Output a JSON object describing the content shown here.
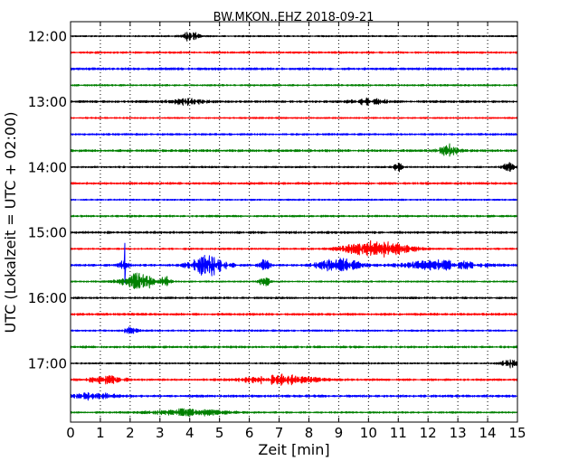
{
  "chart_data": {
    "type": "line",
    "title": "BW.MKON..EHZ 2018-09-21",
    "xlabel": "Zeit  [min]",
    "ylabel": "UTC (Lokalzeit = UTC + 02:00)",
    "xlim": [
      0,
      15
    ],
    "x_ticks": [
      "0",
      "1",
      "2",
      "3",
      "4",
      "5",
      "6",
      "7",
      "8",
      "9",
      "10",
      "11",
      "12",
      "13",
      "14",
      "15"
    ],
    "row_labels": [
      "12:00",
      "13:00",
      "14:00",
      "15:00",
      "16:00",
      "17:00"
    ],
    "trace_start": "12:00",
    "trace_interval_minutes": 15,
    "trace_count": 24,
    "grid": "vertical dotted at each minute",
    "colors": [
      "#000000",
      "#ff0000",
      "#0000ff",
      "#008000"
    ],
    "events": [
      {
        "trace": 0,
        "x": 4.0,
        "amp": 0.6,
        "dur": 0.5
      },
      {
        "trace": 4,
        "x": 3.9,
        "amp": 0.35,
        "dur": 1.0
      },
      {
        "trace": 4,
        "x": 10.0,
        "amp": 0.35,
        "dur": 1.0
      },
      {
        "trace": 7,
        "x": 12.7,
        "amp": 0.9,
        "dur": 0.5
      },
      {
        "trace": 8,
        "x": 11.0,
        "amp": 0.6,
        "dur": 0.2
      },
      {
        "trace": 8,
        "x": 14.7,
        "amp": 0.5,
        "dur": 0.3
      },
      {
        "trace": 13,
        "x": 10.3,
        "amp": 1.0,
        "dur": 1.8
      },
      {
        "trace": 14,
        "x": 1.8,
        "amp": 0.5,
        "dur": 0.3
      },
      {
        "trace": 14,
        "x": 4.6,
        "amp": 1.3,
        "dur": 1.0
      },
      {
        "trace": 14,
        "x": 6.5,
        "amp": 0.7,
        "dur": 0.3
      },
      {
        "trace": 14,
        "x": 9.0,
        "amp": 0.8,
        "dur": 1.2
      },
      {
        "trace": 14,
        "x": 12.5,
        "amp": 0.6,
        "dur": 2.0
      },
      {
        "trace": 15,
        "x": 2.2,
        "amp": 1.0,
        "dur": 0.9
      },
      {
        "trace": 15,
        "x": 3.2,
        "amp": 0.6,
        "dur": 0.3
      },
      {
        "trace": 15,
        "x": 6.5,
        "amp": 0.7,
        "dur": 0.3
      },
      {
        "trace": 18,
        "x": 2.0,
        "amp": 0.35,
        "dur": 0.4
      },
      {
        "trace": 20,
        "x": 14.7,
        "amp": 0.6,
        "dur": 0.4
      },
      {
        "trace": 21,
        "x": 7.0,
        "amp": 0.6,
        "dur": 2.0
      },
      {
        "trace": 21,
        "x": 1.2,
        "amp": 0.5,
        "dur": 1.0
      },
      {
        "trace": 22,
        "x": 0.8,
        "amp": 0.45,
        "dur": 1.0
      },
      {
        "trace": 23,
        "x": 4.0,
        "amp": 0.4,
        "dur": 2.0
      }
    ],
    "spikes": [
      {
        "trace": 14,
        "x": 1.82,
        "amp_up": 2.7,
        "amp_down": 2.5
      },
      {
        "trace": 15,
        "x": 1.82,
        "amp_up": 0.0,
        "amp_down": 1.6
      },
      {
        "trace": 15,
        "x": 2.65,
        "amp_up": 1.8,
        "amp_down": 0.8
      }
    ]
  }
}
